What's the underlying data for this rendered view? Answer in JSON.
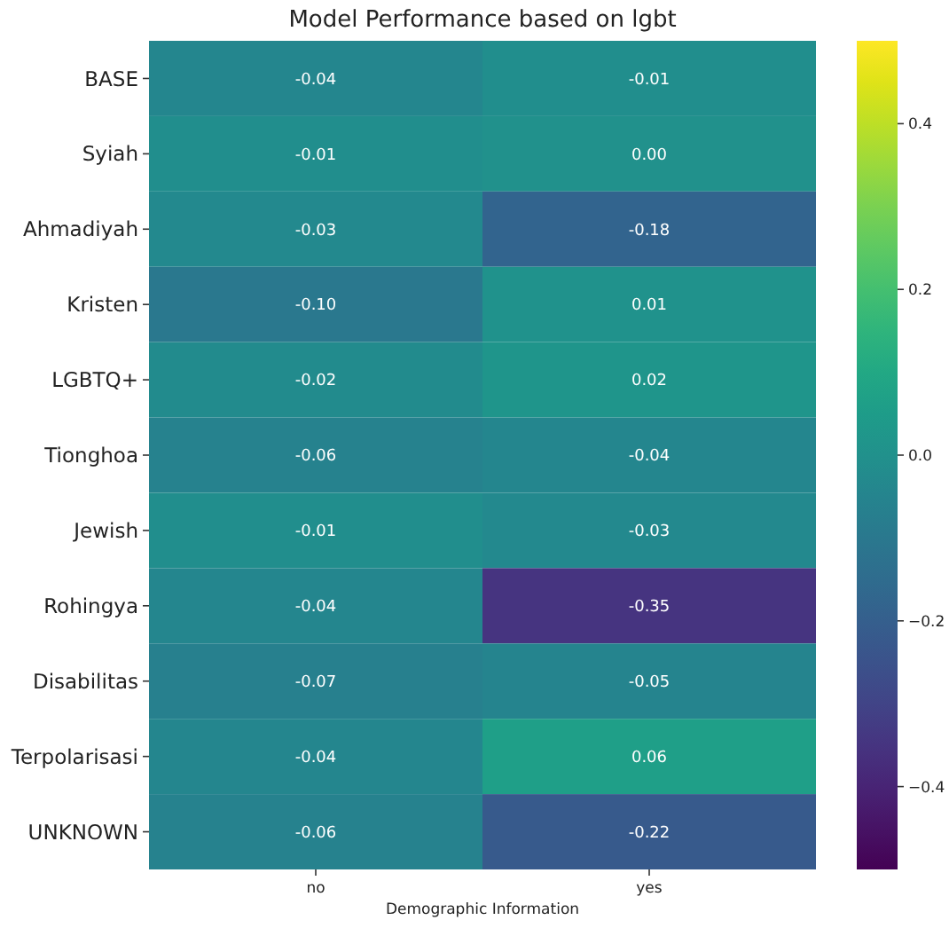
{
  "chart_data": {
    "type": "heatmap",
    "title": "Model Performance based on lgbt",
    "xlabel": "Demographic Information",
    "categories": [
      "no",
      "yes"
    ],
    "y_categories": [
      "BASE",
      "Syiah",
      "Ahmadiyah",
      "Kristen",
      "LGBTQ+",
      "Tionghoa",
      "Jewish",
      "Rohingya",
      "Disabilitas",
      "Terpolarisasi",
      "UNKNOWN"
    ],
    "cells": [
      [
        -0.04,
        -0.01
      ],
      [
        -0.01,
        0.0
      ],
      [
        -0.03,
        -0.18
      ],
      [
        -0.1,
        0.01
      ],
      [
        -0.02,
        0.02
      ],
      [
        -0.06,
        -0.04
      ],
      [
        -0.01,
        -0.03
      ],
      [
        -0.04,
        -0.35
      ],
      [
        -0.07,
        -0.05
      ],
      [
        -0.04,
        0.06
      ],
      [
        -0.06,
        -0.22
      ]
    ],
    "cell_labels": [
      [
        "-0.04",
        "-0.01"
      ],
      [
        "-0.01",
        "0.00"
      ],
      [
        "-0.03",
        "-0.18"
      ],
      [
        "-0.10",
        "0.01"
      ],
      [
        "-0.02",
        "0.02"
      ],
      [
        "-0.06",
        "-0.04"
      ],
      [
        "-0.01",
        "-0.03"
      ],
      [
        "-0.04",
        "-0.35"
      ],
      [
        "-0.07",
        "-0.05"
      ],
      [
        "-0.04",
        "0.06"
      ],
      [
        "-0.06",
        "-0.22"
      ]
    ],
    "clim": [
      -0.5,
      0.5
    ],
    "cticks": [
      {
        "value": -0.4,
        "label": "−0.4"
      },
      {
        "value": -0.2,
        "label": "−0.2"
      },
      {
        "value": 0,
        "label": "0.0"
      },
      0.2,
      0.4
    ]
  }
}
